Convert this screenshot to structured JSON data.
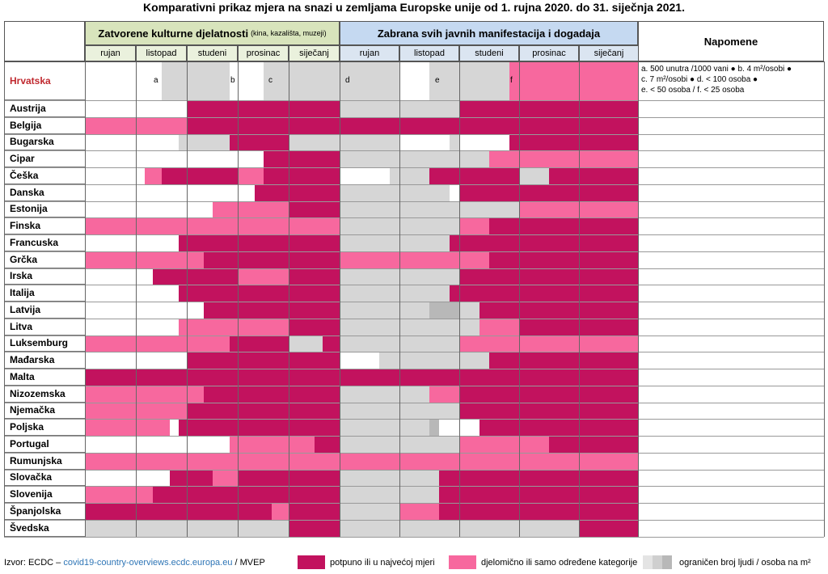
{
  "title": "Komparativni prikaz mjera na snazi u zemljama Europske unije od 1. rujna 2020. do 31. siječnja 2021.",
  "groups": {
    "g1_label": "Zatvorene kulturne djelatnosti",
    "g1_sub": "(kina, kazališta, muzeji)",
    "g2_label": "Zabrana svih javnih manifestacija i dogadaja",
    "g3_label": "Napomene"
  },
  "months": [
    "rujan",
    "listopad",
    "studeni",
    "prosinac",
    "siječanj"
  ],
  "colors": {
    "full": "#c2125e",
    "partial": "#f7689e",
    "limited": "#d6d6d6",
    "none": "#ffffff"
  },
  "countries": [
    "Hrvatska",
    "Austrija",
    "Belgija",
    "Bugarska",
    "Cipar",
    "Češka",
    "Danska",
    "Estonija",
    "Finska",
    "Francuska",
    "Grčka",
    "Irska",
    "Italija",
    "Latvija",
    "Litva",
    "Luksemburg",
    "Mađarska",
    "Malta",
    "Nizozemska",
    "Njemačka",
    "Poljska",
    "Portugal",
    "Rumunjska",
    "Slovačka",
    "Slovenija",
    "Španjolska",
    "Švedska"
  ],
  "measures": {
    "Hrvatska": {
      "culture": [
        "W",
        "WWWLLL",
        "LLLLLW",
        "WWWLLL",
        "L"
      ],
      "events": [
        "L",
        "WWWLLL",
        "LLLLLP",
        "P",
        "P"
      ]
    },
    "Austrija": {
      "culture": [
        "W",
        "W",
        "F",
        "F",
        "F"
      ],
      "events": [
        "L",
        "L",
        "F",
        "F",
        "F"
      ]
    },
    "Belgija": {
      "culture": [
        "P",
        "P",
        "F",
        "F",
        "F"
      ],
      "events": [
        "F",
        "F",
        "F",
        "F",
        "F"
      ]
    },
    "Bugarska": {
      "culture": [
        "W",
        "WWWWWL",
        "LLLLLF",
        "F",
        "L"
      ],
      "events": [
        "L",
        "WWWWWL",
        "WWWWWF",
        "F",
        "F"
      ]
    },
    "Cipar": {
      "culture": [
        "W",
        "W",
        "W",
        "WWWFFF",
        "F"
      ],
      "events": [
        "L",
        "L",
        "LLLPPP",
        "P",
        "P"
      ]
    },
    "Češka": {
      "culture": [
        "W",
        "WPPFFF",
        "F",
        "PPPFFF",
        "F"
      ],
      "events": [
        "WWWWWL",
        "LLLFFF",
        "F",
        "LLLFFF",
        "F"
      ]
    },
    "Danska": {
      "culture": [
        "W",
        "W",
        "W",
        "WWFFFF",
        "F"
      ],
      "events": [
        "L",
        "LLLLLW",
        "F",
        "F",
        "F"
      ]
    },
    "Estonija": {
      "culture": [
        "W",
        "W",
        "WWWPPP",
        "P",
        "F"
      ],
      "events": [
        "L",
        "L",
        "L",
        "P",
        "P"
      ]
    },
    "Finska": {
      "culture": [
        "P",
        "P",
        "P",
        "P",
        "P"
      ],
      "events": [
        "L",
        "L",
        "PPPFFF",
        "F",
        "F"
      ]
    },
    "Francuska": {
      "culture": [
        "W",
        "WWWWWF",
        "F",
        "F",
        "F"
      ],
      "events": [
        "L",
        "LLLLLF",
        "F",
        "F",
        "F"
      ]
    },
    "Grčka": {
      "culture": [
        "P",
        "P",
        "PPFFFF",
        "F",
        "F"
      ],
      "events": [
        "P",
        "P",
        "PPPFFF",
        "F",
        "F"
      ]
    },
    "Irska": {
      "culture": [
        "W",
        "WWFFFF",
        "F",
        "P",
        "F"
      ],
      "events": [
        "L",
        "L",
        "F",
        "F",
        "F"
      ]
    },
    "Italija": {
      "culture": [
        "W",
        "WWWWWF",
        "F",
        "F",
        "F"
      ],
      "events": [
        "L",
        "LLLLLF",
        "F",
        "F",
        "F"
      ]
    },
    "Latvija": {
      "culture": [
        "W",
        "W",
        "WWFFFF",
        "F",
        "F"
      ],
      "events": [
        "L",
        "LLLMMM",
        "LLFFFF",
        "F",
        "F"
      ]
    },
    "Litva": {
      "culture": [
        "W",
        "WWWWWP",
        "P",
        "P",
        "F"
      ],
      "events": [
        "L",
        "L",
        "LLPPPP",
        "F",
        "F"
      ]
    },
    "Luksemburg": {
      "culture": [
        "P",
        "P",
        "PPPPPF",
        "F",
        "LLLLFF"
      ],
      "events": [
        "L",
        "L",
        "P",
        "P",
        "P"
      ]
    },
    "Mađarska": {
      "culture": [
        "W",
        "W",
        "F",
        "F",
        "F"
      ],
      "events": [
        "WWWWLL",
        "L",
        "LLLFFF",
        "F",
        "F"
      ]
    },
    "Malta": {
      "culture": [
        "F",
        "F",
        "F",
        "F",
        "F"
      ],
      "events": [
        "F",
        "F",
        "F",
        "F",
        "F"
      ]
    },
    "Nizozemska": {
      "culture": [
        "P",
        "P",
        "PPFFFF",
        "F",
        "F"
      ],
      "events": [
        "L",
        "LLLPPP",
        "F",
        "F",
        "F"
      ]
    },
    "Njemačka": {
      "culture": [
        "P",
        "P",
        "F",
        "F",
        "F"
      ],
      "events": [
        "L",
        "L",
        "F",
        "F",
        "F"
      ]
    },
    "Poljska": {
      "culture": [
        "P",
        "PPPPWF",
        "F",
        "F",
        "F"
      ],
      "events": [
        "L",
        "LLLMWW",
        "WWFFFF",
        "F",
        "F"
      ]
    },
    "Portugal": {
      "culture": [
        "W",
        "W",
        "WWWWWP",
        "PPPPPP",
        "PPPFFF"
      ],
      "events": [
        "L",
        "L",
        "P",
        "PPPFFF",
        "F"
      ]
    },
    "Rumunjska": {
      "culture": [
        "P",
        "P",
        "P",
        "P",
        "P"
      ],
      "events": [
        "P",
        "P",
        "P",
        "P",
        "P"
      ]
    },
    "Slovačka": {
      "culture": [
        "W",
        "WWWWFF",
        "FFFPPP",
        "F",
        "F"
      ],
      "events": [
        "L",
        "LLLLFF",
        "F",
        "F",
        "F"
      ]
    },
    "Slovenija": {
      "culture": [
        "P",
        "PPFFFF",
        "F",
        "F",
        "F"
      ],
      "events": [
        "L",
        "LLLLFF",
        "F",
        "F",
        "F"
      ]
    },
    "Španjolska": {
      "culture": [
        "F",
        "F",
        "F",
        "FFFFPP",
        "F"
      ],
      "events": [
        "L",
        "PPPPFF",
        "F",
        "F",
        "F"
      ]
    },
    "Švedska": {
      "culture": [
        "L",
        "L",
        "L",
        "L",
        "F"
      ],
      "events": [
        "L",
        "L",
        "L",
        "L",
        "F"
      ]
    }
  },
  "hr_letters": {
    "a": "a",
    "b": "b",
    "c": "c",
    "d": "d",
    "e": "e",
    "f": "f"
  },
  "notes": {
    "line1": "a. 500 unutra /1000 vani ● b. 4 m²/osobi ●",
    "line2": "c. 7 m²/osobi ● d. < 100 osoba ●",
    "line3": "e. < 50 osoba / f. < 25 osoba"
  },
  "footer": {
    "source_prefix": "Izvor: ECDC –",
    "source_link": "covid19-country-overviews.ecdc.europa.eu",
    "source_suffix": "/ MVEP",
    "legend_full": "potpuno ili u najvećoj mjeri",
    "legend_partial": "djelomično ili samo određene kategorije",
    "legend_limited": "ograničen broj ljudi / osoba na m²"
  }
}
